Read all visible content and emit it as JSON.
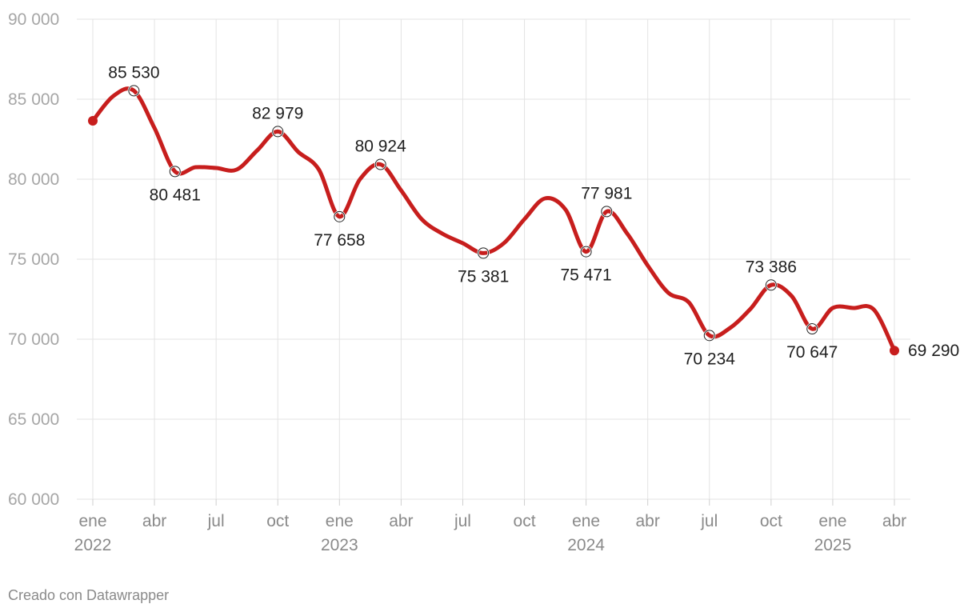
{
  "chart_data": {
    "type": "line",
    "title": "",
    "xlabel": "",
    "ylabel": "",
    "ylim": [
      60000,
      90000
    ],
    "yticks": [
      60000,
      65000,
      70000,
      75000,
      80000,
      85000,
      90000
    ],
    "ytick_labels": [
      "60 000",
      "65 000",
      "70 000",
      "75 000",
      "80 000",
      "85 000",
      "90 000"
    ],
    "xlim": [
      "2022-01",
      "2025-04"
    ],
    "xticks": [
      {
        "month": "2022-01",
        "label": "ene",
        "year": "2022"
      },
      {
        "month": "2022-04",
        "label": "abr",
        "year": ""
      },
      {
        "month": "2022-07",
        "label": "jul",
        "year": ""
      },
      {
        "month": "2022-10",
        "label": "oct",
        "year": ""
      },
      {
        "month": "2023-01",
        "label": "ene",
        "year": "2023"
      },
      {
        "month": "2023-04",
        "label": "abr",
        "year": ""
      },
      {
        "month": "2023-07",
        "label": "jul",
        "year": ""
      },
      {
        "month": "2023-10",
        "label": "oct",
        "year": ""
      },
      {
        "month": "2024-01",
        "label": "ene",
        "year": "2024"
      },
      {
        "month": "2024-04",
        "label": "abr",
        "year": ""
      },
      {
        "month": "2024-07",
        "label": "jul",
        "year": ""
      },
      {
        "month": "2024-10",
        "label": "oct",
        "year": ""
      },
      {
        "month": "2025-01",
        "label": "ene",
        "year": "2025"
      },
      {
        "month": "2025-04",
        "label": "abr",
        "year": ""
      }
    ],
    "grid": true,
    "line_color": "#c71e1d",
    "series": [
      {
        "name": "",
        "points": [
          {
            "x": "2022-01",
            "y": 83650
          },
          {
            "x": "2022-02",
            "y": 85200
          },
          {
            "x": "2022-03",
            "y": 85530
          },
          {
            "x": "2022-04",
            "y": 83200
          },
          {
            "x": "2022-05",
            "y": 80481
          },
          {
            "x": "2022-06",
            "y": 80750
          },
          {
            "x": "2022-07",
            "y": 80700
          },
          {
            "x": "2022-08",
            "y": 80600
          },
          {
            "x": "2022-09",
            "y": 81800
          },
          {
            "x": "2022-10",
            "y": 82979
          },
          {
            "x": "2022-11",
            "y": 81700
          },
          {
            "x": "2022-12",
            "y": 80600
          },
          {
            "x": "2023-01",
            "y": 77658
          },
          {
            "x": "2023-02",
            "y": 80000
          },
          {
            "x": "2023-03",
            "y": 80924
          },
          {
            "x": "2023-04",
            "y": 79300
          },
          {
            "x": "2023-05",
            "y": 77500
          },
          {
            "x": "2023-06",
            "y": 76600
          },
          {
            "x": "2023-07",
            "y": 76000
          },
          {
            "x": "2023-08",
            "y": 75381
          },
          {
            "x": "2023-09",
            "y": 76000
          },
          {
            "x": "2023-10",
            "y": 77500
          },
          {
            "x": "2023-11",
            "y": 78800
          },
          {
            "x": "2023-12",
            "y": 78100
          },
          {
            "x": "2024-01",
            "y": 75471
          },
          {
            "x": "2024-02",
            "y": 77981
          },
          {
            "x": "2024-03",
            "y": 76600
          },
          {
            "x": "2024-04",
            "y": 74600
          },
          {
            "x": "2024-05",
            "y": 72900
          },
          {
            "x": "2024-06",
            "y": 72300
          },
          {
            "x": "2024-07",
            "y": 70234
          },
          {
            "x": "2024-08",
            "y": 70700
          },
          {
            "x": "2024-09",
            "y": 71900
          },
          {
            "x": "2024-10",
            "y": 73386
          },
          {
            "x": "2024-11",
            "y": 72700
          },
          {
            "x": "2024-12",
            "y": 70647
          },
          {
            "x": "2025-01",
            "y": 71950
          },
          {
            "x": "2025-02",
            "y": 71950
          },
          {
            "x": "2025-03",
            "y": 71850
          },
          {
            "x": "2025-04",
            "y": 69290
          }
        ]
      }
    ],
    "annotations": [
      {
        "x": "2022-01",
        "y": 83650,
        "label": "",
        "marker": "filled"
      },
      {
        "x": "2022-03",
        "y": 85530,
        "label": "85 530",
        "pos": "above",
        "marker": "circle"
      },
      {
        "x": "2022-05",
        "y": 80481,
        "label": "80 481",
        "pos": "below",
        "marker": "circle"
      },
      {
        "x": "2022-10",
        "y": 82979,
        "label": "82 979",
        "pos": "above",
        "marker": "circle"
      },
      {
        "x": "2023-01",
        "y": 77658,
        "label": "77 658",
        "pos": "below",
        "marker": "circle"
      },
      {
        "x": "2023-03",
        "y": 80924,
        "label": "80 924",
        "pos": "above",
        "marker": "circle"
      },
      {
        "x": "2023-08",
        "y": 75381,
        "label": "75 381",
        "pos": "below",
        "marker": "circle"
      },
      {
        "x": "2024-01",
        "y": 75471,
        "label": "75 471",
        "pos": "below",
        "marker": "circle"
      },
      {
        "x": "2024-02",
        "y": 77981,
        "label": "77 981",
        "pos": "above",
        "marker": "circle"
      },
      {
        "x": "2024-07",
        "y": 70234,
        "label": "70 234",
        "pos": "below",
        "marker": "circle"
      },
      {
        "x": "2024-10",
        "y": 73386,
        "label": "73 386",
        "pos": "above",
        "marker": "circle"
      },
      {
        "x": "2024-12",
        "y": 70647,
        "label": "70 647",
        "pos": "below",
        "marker": "circle"
      },
      {
        "x": "2025-04",
        "y": 69290,
        "label": "69 290",
        "pos": "right",
        "marker": "filled"
      }
    ]
  },
  "footer": {
    "credit": "Creado con Datawrapper"
  }
}
